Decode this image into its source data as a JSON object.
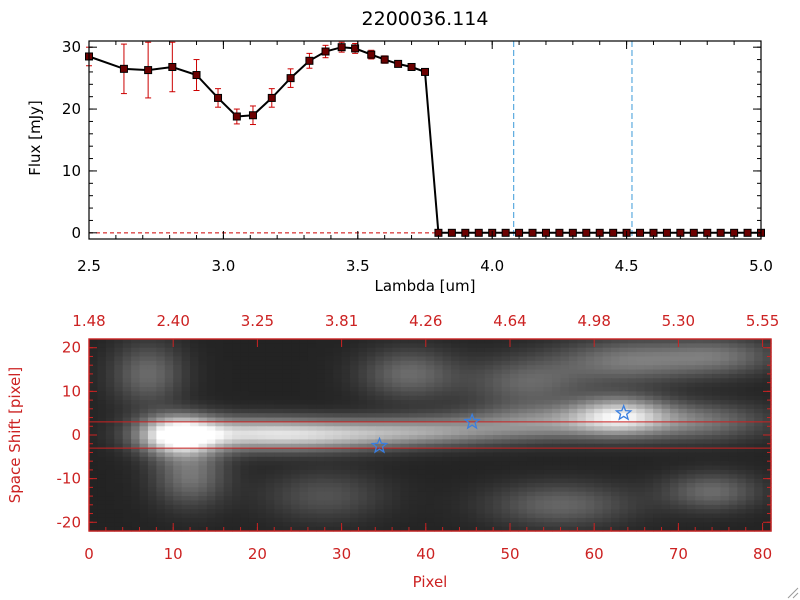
{
  "chart_data": [
    {
      "type": "line",
      "title": "2200036.114",
      "xlabel": "Lambda [um]",
      "ylabel": "Flux [mJy]",
      "xlim": [
        2.5,
        5.0
      ],
      "ylim": [
        -1,
        31
      ],
      "x_ticks": [
        "2.5",
        "3.0",
        "3.5",
        "4.0",
        "4.5",
        "5.0"
      ],
      "y_ticks": [
        "0",
        "10",
        "20",
        "30"
      ],
      "grid": false,
      "series_color": "#000000",
      "errorbar_color": "#cc0000",
      "marker_color": "#6b0000",
      "x": [
        2.5,
        2.63,
        2.72,
        2.81,
        2.9,
        2.98,
        3.05,
        3.11,
        3.18,
        3.25,
        3.32,
        3.38,
        3.44,
        3.49,
        3.55,
        3.6,
        3.65,
        3.7,
        3.75,
        3.8,
        3.85,
        3.9,
        3.95,
        4.0,
        4.05,
        4.1,
        4.15,
        4.2,
        4.25,
        4.3,
        4.35,
        4.4,
        4.45,
        4.5,
        4.55,
        4.6,
        4.65,
        4.7,
        4.75,
        4.8,
        4.85,
        4.9,
        4.95,
        5.0
      ],
      "y": [
        28.5,
        26.5,
        26.3,
        26.8,
        25.5,
        21.8,
        18.8,
        19.0,
        21.8,
        25.0,
        27.8,
        29.3,
        30.0,
        29.8,
        28.8,
        28.0,
        27.3,
        26.8,
        26.0,
        0,
        0,
        0,
        0,
        0,
        0,
        0,
        0,
        0,
        0,
        0,
        0,
        0,
        0,
        0,
        0,
        0,
        0,
        0,
        0,
        0,
        0,
        0,
        0,
        0
      ],
      "yerr": [
        1.5,
        4.0,
        4.5,
        4.0,
        2.5,
        1.5,
        1.2,
        1.5,
        1.5,
        1.5,
        1.2,
        1.0,
        0.8,
        0.8,
        0.7,
        0.6,
        0.5,
        0.5,
        0.5,
        0,
        0,
        0,
        0,
        0,
        0,
        0,
        0,
        0,
        0,
        0,
        0,
        0,
        0,
        0,
        0,
        0,
        0,
        0,
        0,
        0,
        0,
        0,
        0,
        0
      ],
      "vlines": [
        4.08,
        4.52
      ],
      "vline_color": "#3a9ad9",
      "hline_y": 0,
      "hline_color": "#cc0000"
    },
    {
      "type": "heatmap",
      "xlabel": "Pixel",
      "ylabel": "Space Shift [pixel]",
      "xlim": [
        0,
        81
      ],
      "ylim": [
        -22,
        22
      ],
      "x_ticks": [
        "0",
        "10",
        "20",
        "30",
        "40",
        "50",
        "60",
        "70",
        "80"
      ],
      "y_ticks": [
        "-20",
        "-10",
        "0",
        "10",
        "20"
      ],
      "top_ticks": [
        "1.48",
        "2.40",
        "3.25",
        "3.81",
        "4.26",
        "4.64",
        "4.98",
        "5.30",
        "5.55"
      ],
      "axis_color": "#cc2222",
      "extraction_lines": [
        3,
        -3
      ],
      "markers": [
        {
          "x": 34.5,
          "y": -2.5
        },
        {
          "x": 45.5,
          "y": 3.0
        },
        {
          "x": 63.5,
          "y": 5.0
        }
      ],
      "marker_color": "#3a7fe0",
      "blobs": [
        {
          "x": 10.5,
          "y": 0,
          "sx": 3.2,
          "sy": 3.0,
          "a": 0.9
        },
        {
          "x": 18,
          "y": 0.3,
          "sx": 6.5,
          "sy": 2.6,
          "a": 0.55
        },
        {
          "x": 28,
          "y": 0,
          "sx": 7.0,
          "sy": 2.5,
          "a": 0.5
        },
        {
          "x": 40,
          "y": 0.8,
          "sx": 7.0,
          "sy": 2.3,
          "a": 0.42
        },
        {
          "x": 54,
          "y": 2.8,
          "sx": 7.0,
          "sy": 2.8,
          "a": 0.42
        },
        {
          "x": 63,
          "y": 4.5,
          "sx": 4.0,
          "sy": 3.0,
          "a": 0.65
        },
        {
          "x": 72,
          "y": 3.0,
          "sx": 6.0,
          "sy": 3.0,
          "a": 0.35
        },
        {
          "x": 12,
          "y": -9,
          "sx": 3.0,
          "sy": 5.0,
          "a": 0.35
        },
        {
          "x": 7,
          "y": 14,
          "sx": 3.0,
          "sy": 5.0,
          "a": 0.3
        },
        {
          "x": 38,
          "y": 14,
          "sx": 4.0,
          "sy": 4.0,
          "a": 0.3
        },
        {
          "x": 52,
          "y": 12,
          "sx": 5.0,
          "sy": 4.0,
          "a": 0.28
        },
        {
          "x": 64,
          "y": 17,
          "sx": 6.0,
          "sy": 3.5,
          "a": 0.35
        },
        {
          "x": 75,
          "y": 18,
          "sx": 5.0,
          "sy": 3.0,
          "a": 0.3
        },
        {
          "x": 56,
          "y": -16,
          "sx": 6.0,
          "sy": 3.5,
          "a": 0.28
        },
        {
          "x": 74,
          "y": -13,
          "sx": 4.0,
          "sy": 3.0,
          "a": 0.3
        },
        {
          "x": 28,
          "y": -14,
          "sx": 5.0,
          "sy": 4.0,
          "a": 0.2
        }
      ]
    }
  ]
}
